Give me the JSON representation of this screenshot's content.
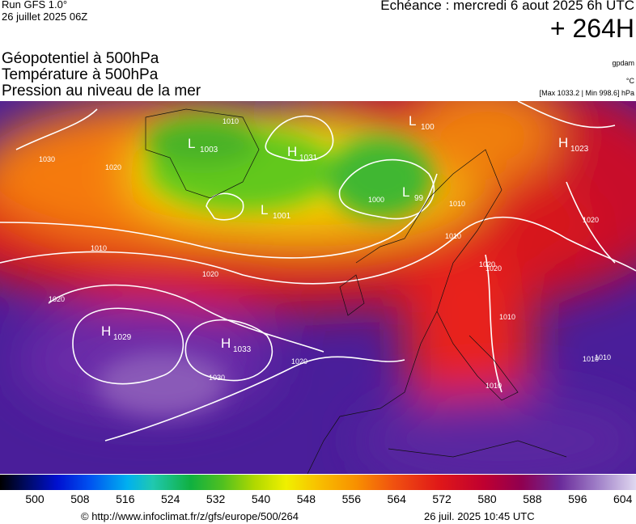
{
  "header": {
    "run": "Run GFS 1.0°",
    "run_date": "26 juillet 2025 06Z",
    "echeance": "Echéance : mercredi 6 aout 2025 6h UTC",
    "lead": "+ 264H"
  },
  "titles": [
    "Géopotentiel à 500hPa",
    "Température à 500hPa",
    "Pression au niveau de la mer"
  ],
  "units": {
    "geopotential": "gpdam",
    "temperature": "°C",
    "pressure": "[Max 1033.2 | Min 998.6] hPa"
  },
  "centers": [
    {
      "letter": "H",
      "value": "1031"
    },
    {
      "letter": "L",
      "value": "1001"
    },
    {
      "letter": "L",
      "value": "1003"
    },
    {
      "letter": "L",
      "value": "99"
    },
    {
      "letter": "L",
      "value": "100"
    },
    {
      "letter": "H",
      "value": "1023"
    },
    {
      "letter": "H",
      "value": "1029"
    },
    {
      "letter": "H",
      "value": "1033"
    }
  ],
  "isobar_labels": [
    "1010",
    "1030",
    "1020",
    "1010",
    "1020",
    "1020",
    "1010",
    "1020",
    "1030",
    "1020",
    "1020",
    "1010",
    "1000",
    "1010",
    "1020",
    "1010",
    "1010",
    "1010"
  ],
  "colorbar": {
    "ticks": [
      "500",
      "508",
      "516",
      "524",
      "532",
      "540",
      "548",
      "556",
      "564",
      "572",
      "580",
      "588",
      "596",
      "604"
    ]
  },
  "footer": {
    "source": "© http://www.infoclimat.fr/z/gfs/europe/500/264",
    "issued": "26 juil. 2025 10:45 UTC"
  }
}
